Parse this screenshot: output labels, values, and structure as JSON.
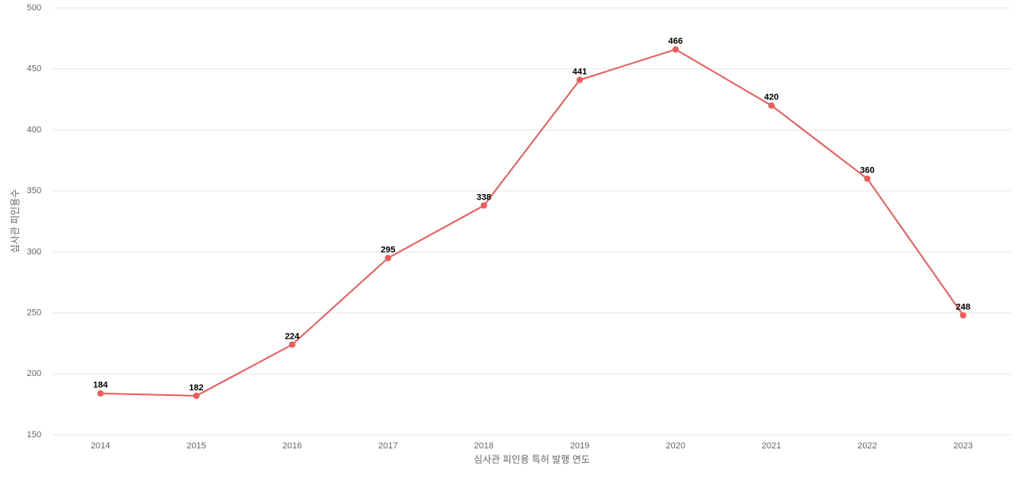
{
  "chart_data": {
    "type": "line",
    "x_label": "심사관 피인용 특허 발행 연도",
    "y_label": "심사관 피인용수",
    "categories": [
      "2014",
      "2015",
      "2016",
      "2017",
      "2018",
      "2019",
      "2020",
      "2021",
      "2022",
      "2023"
    ],
    "series": [
      {
        "color": "#ef5b5b",
        "values": [
          184,
          182,
          224,
          295,
          338,
          441,
          466,
          420,
          360,
          248
        ]
      }
    ],
    "ylim": [
      150,
      500
    ],
    "yticks": [
      150,
      200,
      250,
      300,
      350,
      400,
      450,
      500
    ],
    "grid": true
  }
}
